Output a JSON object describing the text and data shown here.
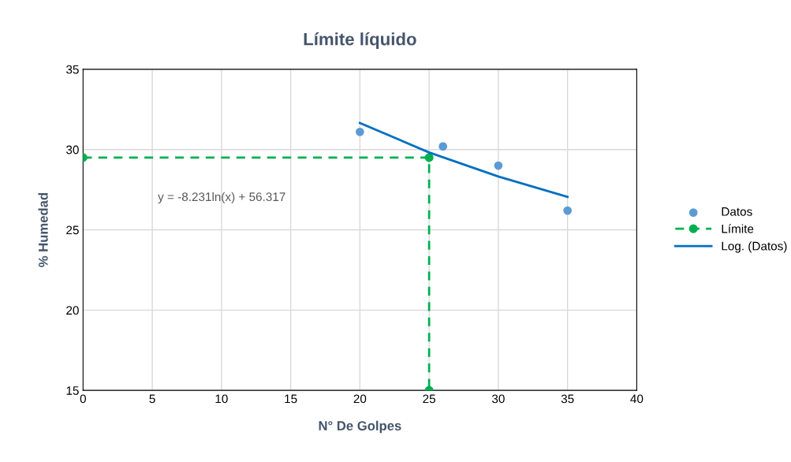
{
  "chart_data": {
    "type": "scatter",
    "title": "Límite líquido",
    "xlabel": "N° De Golpes",
    "ylabel": "% Humedad",
    "xlim": [
      0,
      40
    ],
    "xticks": [
      0,
      5,
      10,
      15,
      20,
      25,
      30,
      35,
      40
    ],
    "ylim": [
      15,
      35
    ],
    "yticks": [
      15,
      20,
      25,
      30,
      35
    ],
    "grid": true,
    "legend": "right",
    "annotations": [
      "y = -8.231ln(x) + 56.317"
    ],
    "series": [
      {
        "name": "Datos",
        "marker": "circle",
        "color": "#5b9bd5",
        "x": [
          20,
          26,
          30,
          35
        ],
        "values": [
          31.1,
          30.2,
          29.0,
          26.2
        ]
      },
      {
        "name": "Límite",
        "type": "line",
        "marker": "circle",
        "line_style": "dashed",
        "color": "#00b050",
        "x": [
          0,
          25,
          25
        ],
        "values": [
          29.5,
          29.5,
          15
        ]
      },
      {
        "name": "Log. (Datos)",
        "type": "line",
        "marker": "none",
        "line_style": "solid",
        "color": "#0070c0",
        "x": [
          20,
          25,
          30,
          35
        ],
        "values": [
          31.66,
          29.82,
          28.32,
          27.05
        ]
      }
    ]
  }
}
